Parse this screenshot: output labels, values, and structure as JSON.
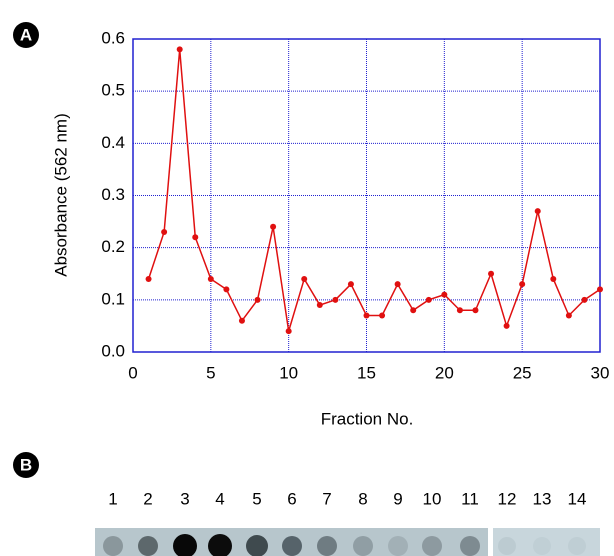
{
  "chart_data": {
    "type": "line",
    "ylabel": "Absorbance (562 nm)",
    "xlabel": "Fraction No.",
    "x": [
      1,
      2,
      3,
      4,
      5,
      6,
      7,
      8,
      9,
      10,
      11,
      12,
      13,
      14,
      15,
      16,
      17,
      18,
      19,
      20,
      21,
      22,
      23,
      24,
      25,
      26,
      27,
      28,
      29,
      30
    ],
    "series": [
      {
        "color": "#e01010",
        "values": [
          0.14,
          0.23,
          0.58,
          0.22,
          0.14,
          0.12,
          0.06,
          0.1,
          0.24,
          0.04,
          0.14,
          0.09,
          0.1,
          0.13,
          0.07,
          0.07,
          0.13,
          0.08,
          0.1,
          0.11,
          0.08,
          0.08,
          0.15,
          0.05,
          0.13,
          0.27,
          0.14,
          0.07,
          0.1,
          0.12
        ]
      }
    ],
    "xlim": [
      0,
      30
    ],
    "xticks": [
      0,
      5,
      10,
      15,
      20,
      25,
      30
    ],
    "ylim": [
      0,
      0.6
    ],
    "yticks": [
      {
        "value": 0,
        "label": "0.0"
      },
      0.1,
      0.2,
      0.3,
      0.4,
      0.5,
      0.6
    ],
    "grid": true,
    "grid_color": "#2020d0"
  },
  "figure": {
    "panel_a": "A",
    "panel_b": "B",
    "lanes": [
      "1",
      "2",
      "3",
      "4",
      "5",
      "6",
      "7",
      "8",
      "9",
      "10",
      "11",
      "12",
      "13",
      "14"
    ]
  }
}
